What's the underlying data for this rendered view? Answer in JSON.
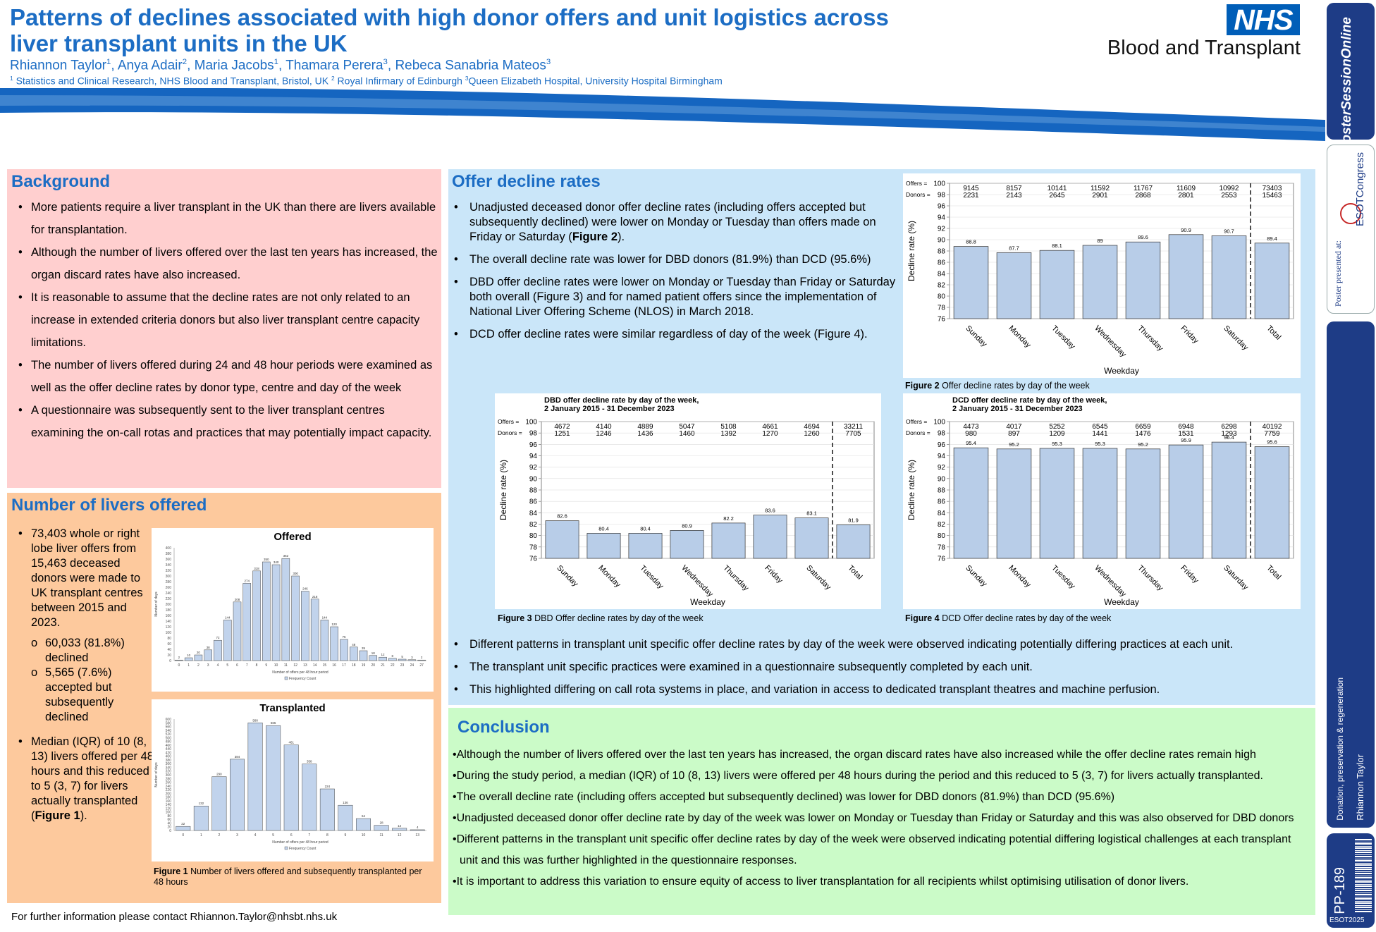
{
  "header": {
    "title": "Patterns of declines associated with high donor offers and unit logistics across liver transplant units in the UK",
    "authors": [
      "Rhiannon Taylor",
      "Anya Adair",
      "Maria Jacobs",
      "Thamara Perera",
      "Rebeca Sanabria Mateos"
    ],
    "author_sups": [
      "1",
      "2",
      "1",
      "3",
      "3"
    ],
    "affiliations": [
      {
        "sup": "1",
        "text": "Statistics and Clinical Research, NHS Blood and Transplant, Bristol, UK"
      },
      {
        "sup": "2",
        "text": "Royal Infirmary of Edinburgh"
      },
      {
        "sup": "3",
        "text": "Queen Elizabeth Hospital, University Hospital Birmingham"
      }
    ],
    "logo_text": "NHS",
    "logo_subtitle": "Blood and Transplant"
  },
  "sidebar": {
    "brand": "PosterSessionOnline",
    "presented": "Poster presented at:",
    "congress": "ESOTCongress",
    "category": "Donation, preservation & regeneration",
    "presenter": "Rhiannon Taylor",
    "poster_id": "PP-189",
    "event": "ESOT2025"
  },
  "background": {
    "heading": "Background",
    "bullets": [
      "More patients require a liver transplant in the UK than there are livers available for transplantation.",
      "Although the number of livers offered over the last ten years has increased, the organ discard rates have also increased.",
      "It is reasonable to assume that the decline rates are not only related to an increase in extended criteria donors but also liver transplant centre capacity limitations.",
      "The number of livers offered during 24 and 48 hour periods were examined as well as the offer decline rates by donor type, centre and day of the week",
      "A questionnaire was subsequently sent to the liver transplant centres examining the on-call rotas and practices that may potentially impact capacity."
    ]
  },
  "livers": {
    "heading": "Number of livers offered",
    "bullet1": "73,403 whole or right lobe liver offers from 15,463 deceased donors were made to UK transplant centres between 2015 and 2023.",
    "sub1": "60,033 (81.8%) declined",
    "sub2": "5,565 (7.6%) accepted but subsequently declined",
    "bullet2_pre": "Median (IQR) of 10 (8, 13) livers offered per 48 hours and this reduced to 5 (3, 7) for livers actually transplanted (",
    "bullet2_bold": "Figure 1",
    "bullet2_post": ").",
    "fig_caption_label": "Figure 1",
    "fig_caption": "Number of livers offered and subsequently transplanted per 48 hours"
  },
  "declines": {
    "heading": "Offer decline rates",
    "bullets_top": [
      {
        "pre": "Unadjusted deceased donor offer decline rates (including offers accepted but subsequently declined) were lower on Monday or Tuesday than offers made on Friday or Saturday (",
        "bold": "Figure 2",
        "post": ")."
      },
      {
        "pre": "The overall decline rate was lower for DBD donors (81.9%) than DCD (95.6%)",
        "bold": "",
        "post": ""
      },
      {
        "pre": "DBD offer decline rates were lower on Monday or Tuesday than Friday or Saturday both overall (Figure 3) and for named patient offers since the implementation of National Liver Offering Scheme (NLOS) in March 2018.",
        "bold": "",
        "post": ""
      },
      {
        "pre": "DCD offer decline rates were similar regardless of day of the week (Figure 4).",
        "bold": "",
        "post": ""
      }
    ],
    "bullets_bottom": [
      "Different patterns in transplant unit specific offer decline rates by day of the week were observed indicating potentially differing practices at each unit.",
      "The transplant unit specific practices were examined in a questionnaire subsequently completed by each unit.",
      "This highlighted differing on call rota systems in place, and variation in access to dedicated transplant theatres and machine perfusion."
    ],
    "fig2_label": "Figure 2",
    "fig2_caption": "Offer decline rates by day of the week",
    "fig3_label": "Figure 3",
    "fig3_caption": "DBD Offer decline rates by day of the week",
    "fig4_label": "Figure 4",
    "fig4_caption": "DCD Offer decline rates by day of the week"
  },
  "conclusion": {
    "heading": "Conclusion",
    "bullets": [
      "Although the number of livers offered over the last ten years has increased, the organ discard rates have also increased while the offer decline rates remain high",
      "During the study period, a median (IQR) of 10 (8, 13) livers were offered per 48 hours during the period and this reduced to 5 (3, 7) for livers actually transplanted.",
      "The overall decline rate (including offers accepted but subsequently declined) was lower for DBD donors (81.9%) than DCD (95.6%)",
      "Unadjusted deceased donor offer decline rate by day of the week was lower on Monday or Tuesday than Friday or Saturday and this was also observed for DBD donors",
      "Different patterns in the transplant unit specific offer decline rates by day of the week were observed indicating potential differing logistical challenges at each transplant unit and this was further highlighted in the questionnaire responses.",
      "It is important to address this variation to ensure equity of access to liver transplantation for all recipients whilst optimising utilisation of donor livers."
    ]
  },
  "contact": "For further information please contact Rhiannon.Taylor@nhsbt.nhs.uk",
  "chart_data": [
    {
      "id": "fig1-offered",
      "type": "bar",
      "title": "Offered",
      "xlabel": "Number of offers per 48 hour period",
      "ylabel": "Number of days",
      "legend": "Frequency Count",
      "categories": [
        "0",
        "1",
        "2",
        "3",
        "4",
        "5",
        "6",
        "7",
        "8",
        "9",
        "10",
        "11",
        "12",
        "13",
        "14",
        "15",
        "16",
        "17",
        "18",
        "19",
        "20",
        "21",
        "22",
        "23",
        "24",
        "27"
      ],
      "values": [
        2,
        10,
        20,
        38,
        72,
        144,
        208,
        274,
        318,
        350,
        340,
        362,
        300,
        246,
        218,
        144,
        120,
        75,
        48,
        35,
        18,
        12,
        8,
        5,
        3,
        2
      ],
      "ylim": [
        0,
        400
      ],
      "yticks": [
        0,
        20,
        40,
        60,
        80,
        100,
        120,
        140,
        160,
        180,
        200,
        220,
        240,
        260,
        280,
        300,
        320,
        340,
        360,
        380,
        400
      ]
    },
    {
      "id": "fig1-transplanted",
      "type": "bar",
      "title": "Transplanted",
      "xlabel": "Number of offers per 48 hour period",
      "ylabel": "Number of days",
      "legend": "Frequency Count",
      "categories": [
        "0",
        "1",
        "2",
        "3",
        "4",
        "5",
        "6",
        "7",
        "8",
        "9",
        "10",
        "11",
        "12",
        "13"
      ],
      "values": [
        22,
        132,
        290,
        384,
        580,
        565,
        461,
        358,
        224,
        136,
        64,
        28,
        12,
        4
      ],
      "ylim": [
        0,
        600
      ],
      "yticks": [
        0,
        20,
        40,
        60,
        80,
        100,
        120,
        140,
        160,
        180,
        200,
        220,
        240,
        260,
        280,
        300,
        320,
        340,
        360,
        380,
        400,
        420,
        440,
        460,
        480,
        500,
        520,
        540,
        560,
        580,
        600
      ]
    },
    {
      "id": "fig2",
      "type": "bar",
      "title": "",
      "xlabel": "Weekday",
      "ylabel": "Decline rate (%)",
      "categories": [
        "Sunday",
        "Monday",
        "Tuesday",
        "Wednesday",
        "Thursday",
        "Friday",
        "Saturday",
        "Total"
      ],
      "values": [
        88.8,
        87.7,
        88.1,
        89.0,
        89.6,
        90.9,
        90.7,
        89.4
      ],
      "labels": [
        "88.8",
        "87.7",
        "88.1",
        "89",
        "89.6",
        "90.9",
        "90.7",
        "89.4"
      ],
      "offers": [
        "9145",
        "8157",
        "10141",
        "11592",
        "11767",
        "11609",
        "10992",
        "73403"
      ],
      "donors": [
        "2231",
        "2143",
        "2645",
        "2901",
        "2868",
        "2801",
        "2553",
        "15463"
      ],
      "ylim": [
        76,
        100
      ],
      "yticks": [
        76,
        78,
        80,
        82,
        84,
        86,
        88,
        90,
        92,
        94,
        96,
        98,
        100
      ]
    },
    {
      "id": "fig3",
      "type": "bar",
      "title": "DBD offer decline rate by day of the week,\n2 January 2015 - 31 December 2023",
      "xlabel": "Weekday",
      "ylabel": "Decline rate (%)",
      "categories": [
        "Sunday",
        "Monday",
        "Tuesday",
        "Wednesday",
        "Thursday",
        "Friday",
        "Saturday",
        "Total"
      ],
      "values": [
        82.6,
        80.4,
        80.4,
        80.9,
        82.2,
        83.6,
        83.1,
        81.9
      ],
      "labels": [
        "82.6",
        "80.4",
        "80.4",
        "80.9",
        "82.2",
        "83.6",
        "83.1",
        "81.9"
      ],
      "offers": [
        "4672",
        "4140",
        "4889",
        "5047",
        "5108",
        "4661",
        "4694",
        "33211"
      ],
      "donors": [
        "1251",
        "1246",
        "1436",
        "1460",
        "1392",
        "1270",
        "1260",
        "7705"
      ],
      "ylim": [
        76,
        100
      ],
      "yticks": [
        76,
        78,
        80,
        82,
        84,
        86,
        88,
        90,
        92,
        94,
        96,
        98,
        100
      ]
    },
    {
      "id": "fig4",
      "type": "bar",
      "title": "DCD offer decline rate by day of the week,\n2 January 2015 - 31 December 2023",
      "xlabel": "Weekday",
      "ylabel": "Decline rate (%)",
      "categories": [
        "Sunday",
        "Monday",
        "Tuesday",
        "Wednesday",
        "Thursday",
        "Friday",
        "Saturday",
        "Total"
      ],
      "values": [
        95.4,
        95.2,
        95.3,
        95.3,
        95.2,
        95.9,
        96.4,
        95.6
      ],
      "labels": [
        "95.4",
        "95.2",
        "95.3",
        "95.3",
        "95.2",
        "95.9",
        "96.4",
        "95.6"
      ],
      "offers": [
        "4473",
        "4017",
        "5252",
        "6545",
        "6659",
        "6948",
        "6298",
        "40192"
      ],
      "donors": [
        "980",
        "897",
        "1209",
        "1441",
        "1476",
        "1531",
        "1293",
        "7759"
      ],
      "ylim": [
        76,
        100
      ],
      "yticks": [
        76,
        78,
        80,
        82,
        84,
        86,
        88,
        90,
        92,
        94,
        96,
        98,
        100
      ]
    }
  ]
}
